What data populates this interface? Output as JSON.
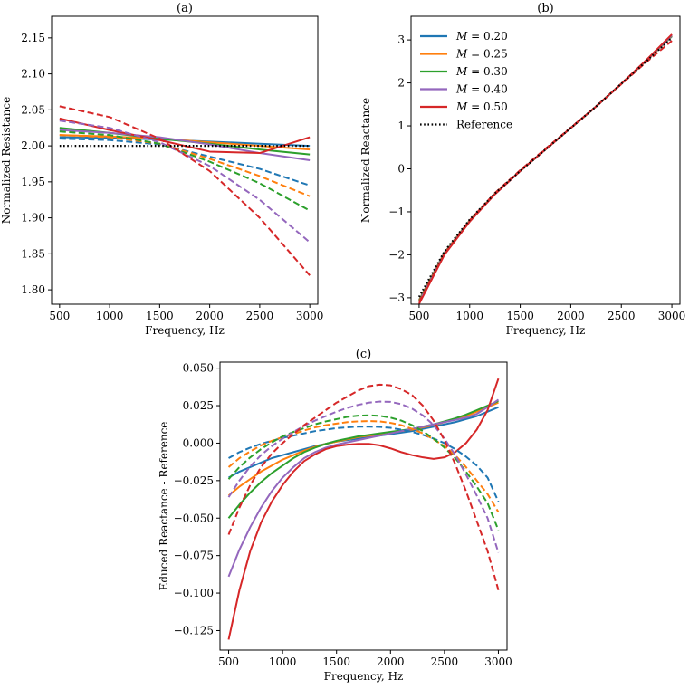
{
  "colors": {
    "M020": "#1f77b4",
    "M025": "#ff7f0e",
    "M030": "#2ca02c",
    "M040": "#9467bd",
    "M050": "#d62728",
    "reference": "#000000"
  },
  "legend": {
    "placement": "top-left",
    "entries": [
      {
        "label": "M = 0.20",
        "color": "#1f77b4",
        "dash": "solid"
      },
      {
        "label": "M = 0.25",
        "color": "#ff7f0e",
        "dash": "solid"
      },
      {
        "label": "M = 0.30",
        "color": "#2ca02c",
        "dash": "solid"
      },
      {
        "label": "M = 0.40",
        "color": "#9467bd",
        "dash": "solid"
      },
      {
        "label": "M = 0.50",
        "color": "#d62728",
        "dash": "solid"
      },
      {
        "label": "Reference",
        "color": "#000000",
        "dash": "dotted"
      }
    ]
  },
  "chart_data": [
    {
      "id": "a",
      "type": "line",
      "title": "(a)",
      "xlabel": "Frequency, Hz",
      "ylabel": "Normalized Resistance",
      "xlim": [
        420,
        3080
      ],
      "ylim": [
        1.78,
        2.18
      ],
      "xticks": [
        500,
        1000,
        1500,
        2000,
        2500,
        3000
      ],
      "yticks": [
        1.8,
        1.85,
        1.9,
        1.95,
        2.0,
        2.05,
        2.1,
        2.15
      ],
      "ytick_labels": [
        "1.80",
        "1.85",
        "1.90",
        "1.95",
        "2.00",
        "2.05",
        "2.10",
        "2.15"
      ],
      "x": [
        500,
        1000,
        1500,
        2000,
        2500,
        3000
      ],
      "series": [
        {
          "color": "#1f77b4",
          "dash": "solid",
          "values": [
            2.012,
            2.011,
            2.009,
            2.006,
            2.003,
            2.0
          ]
        },
        {
          "color": "#ff7f0e",
          "dash": "solid",
          "values": [
            2.015,
            2.013,
            2.01,
            2.005,
            2.0,
            1.995
          ]
        },
        {
          "color": "#2ca02c",
          "dash": "solid",
          "values": [
            2.025,
            2.018,
            2.01,
            2.003,
            1.995,
            1.988
          ]
        },
        {
          "color": "#9467bd",
          "dash": "solid",
          "values": [
            2.022,
            2.018,
            2.012,
            2.002,
            1.99,
            1.98
          ]
        },
        {
          "color": "#d62728",
          "dash": "solid",
          "values": [
            2.038,
            2.022,
            2.008,
            1.992,
            1.99,
            2.012
          ]
        },
        {
          "color": "#1f77b4",
          "dash": "dashed",
          "values": [
            2.01,
            2.008,
            2.002,
            1.985,
            1.968,
            1.945
          ]
        },
        {
          "color": "#ff7f0e",
          "dash": "dashed",
          "values": [
            2.015,
            2.012,
            2.003,
            1.982,
            1.958,
            1.93
          ]
        },
        {
          "color": "#2ca02c",
          "dash": "dashed",
          "values": [
            2.02,
            2.015,
            2.003,
            1.978,
            1.948,
            1.91
          ]
        },
        {
          "color": "#9467bd",
          "dash": "dashed",
          "values": [
            2.035,
            2.025,
            2.005,
            1.972,
            1.925,
            1.866
          ]
        },
        {
          "color": "#d62728",
          "dash": "dashed",
          "values": [
            2.055,
            2.04,
            2.01,
            1.965,
            1.9,
            1.82
          ]
        },
        {
          "color": "#000000",
          "dash": "dotted",
          "values": [
            2.0,
            2.0,
            2.0,
            2.0,
            2.0,
            2.0
          ]
        }
      ]
    },
    {
      "id": "b",
      "type": "line",
      "title": "(b)",
      "xlabel": "Frequency, Hz",
      "ylabel": "Normalized Reactance",
      "xlim": [
        420,
        3080
      ],
      "ylim": [
        -3.15,
        3.55
      ],
      "xticks": [
        500,
        1000,
        1500,
        2000,
        2500,
        3000
      ],
      "yticks": [
        -3,
        -2,
        -1,
        0,
        1,
        2,
        3
      ],
      "ytick_labels": [
        "−3",
        "−2",
        "−1",
        "0",
        "1",
        "2",
        "3"
      ],
      "x": [
        500,
        750,
        1000,
        1250,
        1500,
        1750,
        2000,
        2250,
        2500,
        2750,
        3000
      ],
      "series": [
        {
          "name": "M = 0.20",
          "color": "#1f77b4",
          "dash": "solid",
          "values": [
            -3.05,
            -1.95,
            -1.2,
            -0.58,
            -0.05,
            0.45,
            0.95,
            1.45,
            1.98,
            2.52,
            3.08
          ]
        },
        {
          "name": "M = 0.25",
          "color": "#ff7f0e",
          "dash": "solid",
          "values": [
            -3.06,
            -1.96,
            -1.2,
            -0.58,
            -0.05,
            0.45,
            0.95,
            1.45,
            1.98,
            2.52,
            3.09
          ]
        },
        {
          "name": "M = 0.30",
          "color": "#2ca02c",
          "dash": "solid",
          "values": [
            -3.08,
            -1.97,
            -1.21,
            -0.58,
            -0.05,
            0.45,
            0.95,
            1.45,
            1.98,
            2.53,
            3.1
          ]
        },
        {
          "name": "M = 0.40",
          "color": "#9467bd",
          "dash": "solid",
          "values": [
            -3.1,
            -1.98,
            -1.22,
            -0.59,
            -0.05,
            0.45,
            0.95,
            1.45,
            1.98,
            2.53,
            3.11
          ]
        },
        {
          "name": "M = 0.50",
          "color": "#d62728",
          "dash": "solid",
          "values": [
            -3.14,
            -2.0,
            -1.23,
            -0.59,
            -0.05,
            0.45,
            0.95,
            1.45,
            1.98,
            2.54,
            3.13
          ]
        },
        {
          "color": "#d62728",
          "dash": "dashed",
          "values": [
            -3.1,
            -1.98,
            -1.2,
            -0.56,
            -0.03,
            0.47,
            0.96,
            1.45,
            1.97,
            2.49,
            2.98
          ]
        },
        {
          "name": "Reference",
          "color": "#000000",
          "dash": "dotted",
          "values": [
            -2.98,
            -1.92,
            -1.18,
            -0.57,
            -0.05,
            0.45,
            0.95,
            1.45,
            1.98,
            2.51,
            3.05
          ]
        }
      ]
    },
    {
      "id": "c",
      "type": "line",
      "title": "(c)",
      "xlabel": "Frequency, Hz",
      "ylabel": "Educed Reactance - Reference",
      "xlim": [
        420,
        3080
      ],
      "ylim": [
        -0.138,
        0.054
      ],
      "xticks": [
        500,
        1000,
        1500,
        2000,
        2500,
        3000
      ],
      "yticks": [
        -0.125,
        -0.1,
        -0.075,
        -0.05,
        -0.025,
        0.0,
        0.025,
        0.05
      ],
      "ytick_labels": [
        "−0.125",
        "−0.100",
        "−0.075",
        "−0.050",
        "−0.025",
        "0.000",
        "0.025",
        "0.050"
      ],
      "x": [
        500,
        600,
        700,
        800,
        900,
        1000,
        1100,
        1200,
        1300,
        1400,
        1500,
        1600,
        1700,
        1800,
        1900,
        2000,
        2100,
        2200,
        2300,
        2400,
        2500,
        2600,
        2700,
        2800,
        2900,
        3000
      ],
      "series": [
        {
          "color": "#1f77b4",
          "dash": "solid",
          "values": [
            -0.023,
            -0.019,
            -0.016,
            -0.013,
            -0.01,
            -0.008,
            -0.006,
            -0.004,
            -0.002,
            -0.0005,
            0.001,
            0.002,
            0.003,
            0.004,
            0.005,
            0.006,
            0.007,
            0.008,
            0.0095,
            0.011,
            0.0125,
            0.014,
            0.016,
            0.018,
            0.021,
            0.024
          ]
        },
        {
          "color": "#ff7f0e",
          "dash": "solid",
          "values": [
            -0.035,
            -0.029,
            -0.024,
            -0.019,
            -0.015,
            -0.011,
            -0.008,
            -0.005,
            -0.0025,
            -0.0005,
            0.001,
            0.0025,
            0.004,
            0.005,
            0.006,
            0.007,
            0.008,
            0.009,
            0.0105,
            0.012,
            0.014,
            0.016,
            0.018,
            0.021,
            0.024,
            0.027
          ]
        },
        {
          "color": "#2ca02c",
          "dash": "solid",
          "values": [
            -0.05,
            -0.041,
            -0.033,
            -0.026,
            -0.02,
            -0.015,
            -0.01,
            -0.006,
            -0.003,
            -0.0005,
            0.0015,
            0.003,
            0.0045,
            0.0055,
            0.0065,
            0.0075,
            0.0085,
            0.0095,
            0.011,
            0.0125,
            0.0145,
            0.0165,
            0.019,
            0.022,
            0.025,
            0.028
          ]
        },
        {
          "color": "#9467bd",
          "dash": "solid",
          "values": [
            -0.089,
            -0.071,
            -0.056,
            -0.043,
            -0.032,
            -0.023,
            -0.016,
            -0.01,
            -0.006,
            -0.003,
            -0.001,
            0.0005,
            0.002,
            0.0035,
            0.005,
            0.0065,
            0.008,
            0.0095,
            0.011,
            0.0125,
            0.014,
            0.0155,
            0.017,
            0.0195,
            0.024,
            0.029
          ]
        },
        {
          "color": "#d62728",
          "dash": "solid",
          "values": [
            -0.131,
            -0.098,
            -0.072,
            -0.053,
            -0.039,
            -0.028,
            -0.019,
            -0.012,
            -0.0075,
            -0.004,
            -0.002,
            -0.001,
            -0.0005,
            -0.0005,
            -0.0015,
            -0.0035,
            -0.006,
            -0.008,
            -0.0095,
            -0.0105,
            -0.0095,
            -0.006,
            0.0,
            0.009,
            0.022,
            0.043
          ]
        },
        {
          "color": "#1f77b4",
          "dash": "dashed",
          "values": [
            -0.01,
            -0.006,
            -0.003,
            -0.0005,
            0.0015,
            0.0035,
            0.005,
            0.0065,
            0.008,
            0.009,
            0.01,
            0.0105,
            0.011,
            0.011,
            0.0108,
            0.0102,
            0.009,
            0.0075,
            0.0055,
            0.003,
            0.0,
            -0.004,
            -0.009,
            -0.015,
            -0.023,
            -0.039
          ]
        },
        {
          "color": "#ff7f0e",
          "dash": "dashed",
          "values": [
            -0.016,
            -0.01,
            -0.0055,
            -0.0015,
            0.0015,
            0.004,
            0.006,
            0.0085,
            0.0105,
            0.012,
            0.013,
            0.014,
            0.0145,
            0.0147,
            0.0145,
            0.0135,
            0.012,
            0.0095,
            0.0065,
            0.0025,
            -0.002,
            -0.008,
            -0.016,
            -0.025,
            -0.034,
            -0.046
          ]
        },
        {
          "color": "#2ca02c",
          "dash": "dashed",
          "values": [
            -0.024,
            -0.016,
            -0.0095,
            -0.004,
            0.0005,
            0.0045,
            0.0075,
            0.01,
            0.0125,
            0.0145,
            0.016,
            0.0175,
            0.0183,
            0.0185,
            0.0182,
            0.017,
            0.015,
            0.012,
            0.008,
            0.003,
            -0.003,
            -0.01,
            -0.019,
            -0.029,
            -0.04,
            -0.058
          ]
        },
        {
          "color": "#9467bd",
          "dash": "dashed",
          "values": [
            -0.036,
            -0.025,
            -0.0155,
            -0.008,
            -0.002,
            0.003,
            0.0075,
            0.0115,
            0.015,
            0.018,
            0.021,
            0.0235,
            0.0255,
            0.027,
            0.0277,
            0.0275,
            0.026,
            0.023,
            0.0185,
            0.012,
            0.003,
            -0.008,
            -0.021,
            -0.035,
            -0.05,
            -0.073
          ]
        },
        {
          "color": "#d62728",
          "dash": "dashed",
          "values": [
            -0.061,
            -0.043,
            -0.028,
            -0.016,
            -0.007,
            0.0,
            0.006,
            0.012,
            0.017,
            0.022,
            0.027,
            0.031,
            0.035,
            0.038,
            0.039,
            0.0385,
            0.036,
            0.032,
            0.025,
            0.015,
            0.002,
            -0.014,
            -0.032,
            -0.052,
            -0.072,
            -0.098
          ]
        }
      ]
    }
  ]
}
